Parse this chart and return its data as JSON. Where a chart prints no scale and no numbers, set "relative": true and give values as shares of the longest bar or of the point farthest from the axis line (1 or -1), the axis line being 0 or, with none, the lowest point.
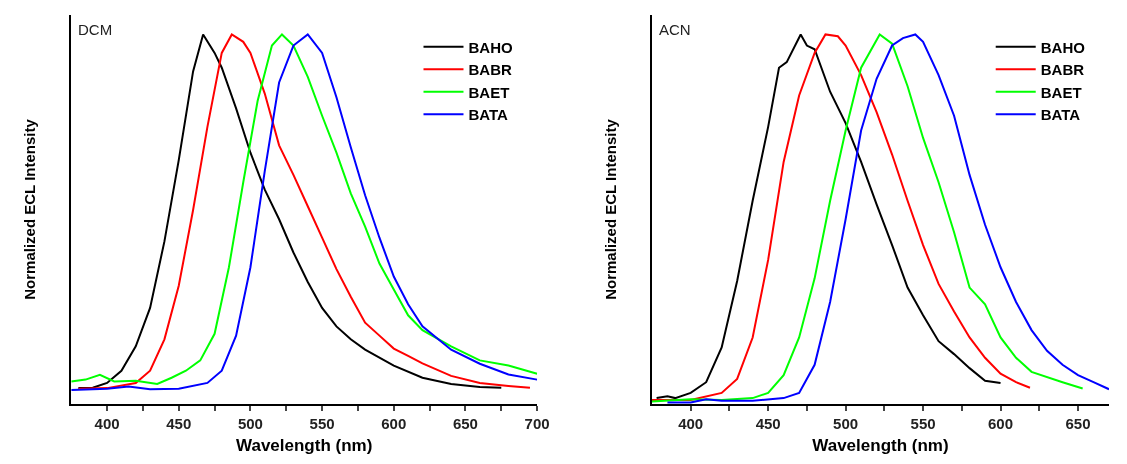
{
  "chart_data": [
    {
      "type": "line",
      "relative": true,
      "xlabel": "Wavelength (nm)",
      "ylabel": "Normalized ECL Intensity",
      "annotations": [
        "DCM"
      ],
      "legend": "top right",
      "marker": "none",
      "line_style": "solid",
      "xlim": [
        375,
        700
      ],
      "xticks": [
        400,
        {
          "value": 425,
          "label": null
        },
        450,
        {
          "value": 475,
          "label": null
        },
        500,
        {
          "value": 525,
          "label": null
        },
        550,
        {
          "value": 575,
          "label": null
        },
        600,
        {
          "value": 625,
          "label": null
        },
        650,
        {
          "value": 675,
          "label": null
        },
        700
      ],
      "series": [
        {
          "name": "BAHO",
          "color": "#000000",
          "x": [
            380,
            390,
            400,
            410,
            420,
            430,
            440,
            450,
            460,
            467,
            475,
            480,
            490,
            500,
            510,
            520,
            530,
            540,
            550,
            560,
            570,
            580,
            600,
            620,
            640,
            660,
            675
          ],
          "values": [
            0.043,
            0.044,
            0.057,
            0.09,
            0.156,
            0.26,
            0.44,
            0.66,
            0.9,
            1.0,
            0.95,
            0.91,
            0.8,
            0.68,
            0.58,
            0.5,
            0.41,
            0.33,
            0.26,
            0.21,
            0.175,
            0.147,
            0.104,
            0.071,
            0.054,
            0.046,
            0.044
          ]
        },
        {
          "name": "BABR",
          "color": "#ff0000",
          "x": [
            380,
            400,
            420,
            430,
            440,
            450,
            460,
            470,
            480,
            487,
            495,
            500,
            510,
            520,
            530,
            540,
            550,
            560,
            570,
            580,
            590,
            600,
            610,
            620,
            640,
            660,
            680,
            695
          ],
          "values": [
            0.041,
            0.043,
            0.057,
            0.09,
            0.175,
            0.32,
            0.525,
            0.75,
            0.95,
            1.0,
            0.98,
            0.95,
            0.84,
            0.7,
            0.62,
            0.535,
            0.45,
            0.365,
            0.29,
            0.22,
            0.185,
            0.15,
            0.13,
            0.11,
            0.076,
            0.057,
            0.049,
            0.044
          ]
        },
        {
          "name": "BAET",
          "color": "#00ff00",
          "x": [
            375,
            385,
            395,
            405,
            420,
            435,
            445,
            455,
            465,
            475,
            485,
            495,
            505,
            515,
            522,
            530,
            540,
            550,
            560,
            570,
            580,
            590,
            600,
            610,
            620,
            640,
            660,
            680,
            700
          ],
          "values": [
            0.061,
            0.066,
            0.079,
            0.061,
            0.063,
            0.054,
            0.071,
            0.09,
            0.118,
            0.19,
            0.37,
            0.6,
            0.82,
            0.97,
            1.0,
            0.97,
            0.885,
            0.78,
            0.68,
            0.57,
            0.48,
            0.38,
            0.31,
            0.24,
            0.2,
            0.156,
            0.118,
            0.104,
            0.082
          ]
        },
        {
          "name": "BATA",
          "color": "#0000ff",
          "x": [
            375,
            400,
            415,
            430,
            450,
            470,
            480,
            490,
            500,
            510,
            520,
            530,
            540,
            550,
            560,
            570,
            580,
            590,
            600,
            610,
            620,
            640,
            660,
            680,
            700
          ],
          "values": [
            0.038,
            0.041,
            0.047,
            0.04,
            0.041,
            0.057,
            0.09,
            0.185,
            0.37,
            0.63,
            0.87,
            0.97,
            1.0,
            0.95,
            0.83,
            0.695,
            0.565,
            0.45,
            0.345,
            0.27,
            0.21,
            0.147,
            0.109,
            0.08,
            0.066
          ]
        }
      ]
    },
    {
      "type": "line",
      "relative": true,
      "xlabel": "Wavelength (nm)",
      "ylabel": "Normalized ECL Intensity",
      "annotations": [
        "ACN"
      ],
      "legend": "top right",
      "marker": "none",
      "line_style": "solid",
      "xlim": [
        375,
        670
      ],
      "xticks": [
        400,
        {
          "value": 425,
          "label": null
        },
        450,
        {
          "value": 475,
          "label": null
        },
        500,
        {
          "value": 525,
          "label": null
        },
        550,
        {
          "value": 575,
          "label": null
        },
        600,
        {
          "value": 625,
          "label": null
        },
        650
      ],
      "series": [
        {
          "name": "BAHO",
          "color": "#000000",
          "x": [
            378,
            385,
            390,
            400,
            410,
            420,
            430,
            440,
            450,
            457,
            462,
            471,
            475,
            480,
            490,
            500,
            510,
            520,
            530,
            540,
            550,
            560,
            570,
            580,
            590,
            600
          ],
          "values": [
            0.016,
            0.021,
            0.016,
            0.03,
            0.059,
            0.153,
            0.333,
            0.55,
            0.75,
            0.91,
            0.925,
            1.0,
            0.97,
            0.96,
            0.845,
            0.76,
            0.655,
            0.54,
            0.43,
            0.315,
            0.24,
            0.17,
            0.135,
            0.097,
            0.063,
            0.057
          ]
        },
        {
          "name": "BABR",
          "color": "#ff0000",
          "x": [
            375,
            400,
            420,
            430,
            440,
            450,
            460,
            470,
            480,
            487,
            495,
            500,
            510,
            520,
            530,
            540,
            550,
            560,
            570,
            580,
            590,
            600,
            610,
            619
          ],
          "values": [
            0.011,
            0.011,
            0.03,
            0.068,
            0.18,
            0.39,
            0.655,
            0.835,
            0.95,
            1.0,
            0.995,
            0.97,
            0.89,
            0.79,
            0.675,
            0.55,
            0.43,
            0.325,
            0.25,
            0.18,
            0.125,
            0.082,
            0.059,
            0.044
          ]
        },
        {
          "name": "BAET",
          "color": "#00ff00",
          "x": [
            375,
            400,
            420,
            440,
            450,
            460,
            470,
            480,
            490,
            500,
            510,
            522,
            530,
            540,
            550,
            560,
            570,
            580,
            590,
            600,
            610,
            620,
            640,
            653
          ],
          "values": [
            0.007,
            0.013,
            0.011,
            0.016,
            0.03,
            0.078,
            0.18,
            0.34,
            0.55,
            0.74,
            0.91,
            1.0,
            0.975,
            0.86,
            0.72,
            0.6,
            0.465,
            0.315,
            0.27,
            0.18,
            0.125,
            0.087,
            0.059,
            0.042
          ]
        },
        {
          "name": "BATA",
          "color": "#0000ff",
          "x": [
            385,
            400,
            410,
            420,
            440,
            460,
            470,
            480,
            490,
            500,
            510,
            520,
            530,
            537,
            545,
            550,
            560,
            570,
            580,
            590,
            600,
            610,
            620,
            630,
            640,
            650,
            660,
            670
          ],
          "values": [
            0.004,
            0.004,
            0.013,
            0.009,
            0.009,
            0.016,
            0.03,
            0.106,
            0.276,
            0.5,
            0.74,
            0.88,
            0.97,
            0.99,
            1.0,
            0.98,
            0.89,
            0.78,
            0.62,
            0.485,
            0.37,
            0.276,
            0.2,
            0.144,
            0.106,
            0.078,
            0.059,
            0.04
          ]
        }
      ]
    }
  ]
}
